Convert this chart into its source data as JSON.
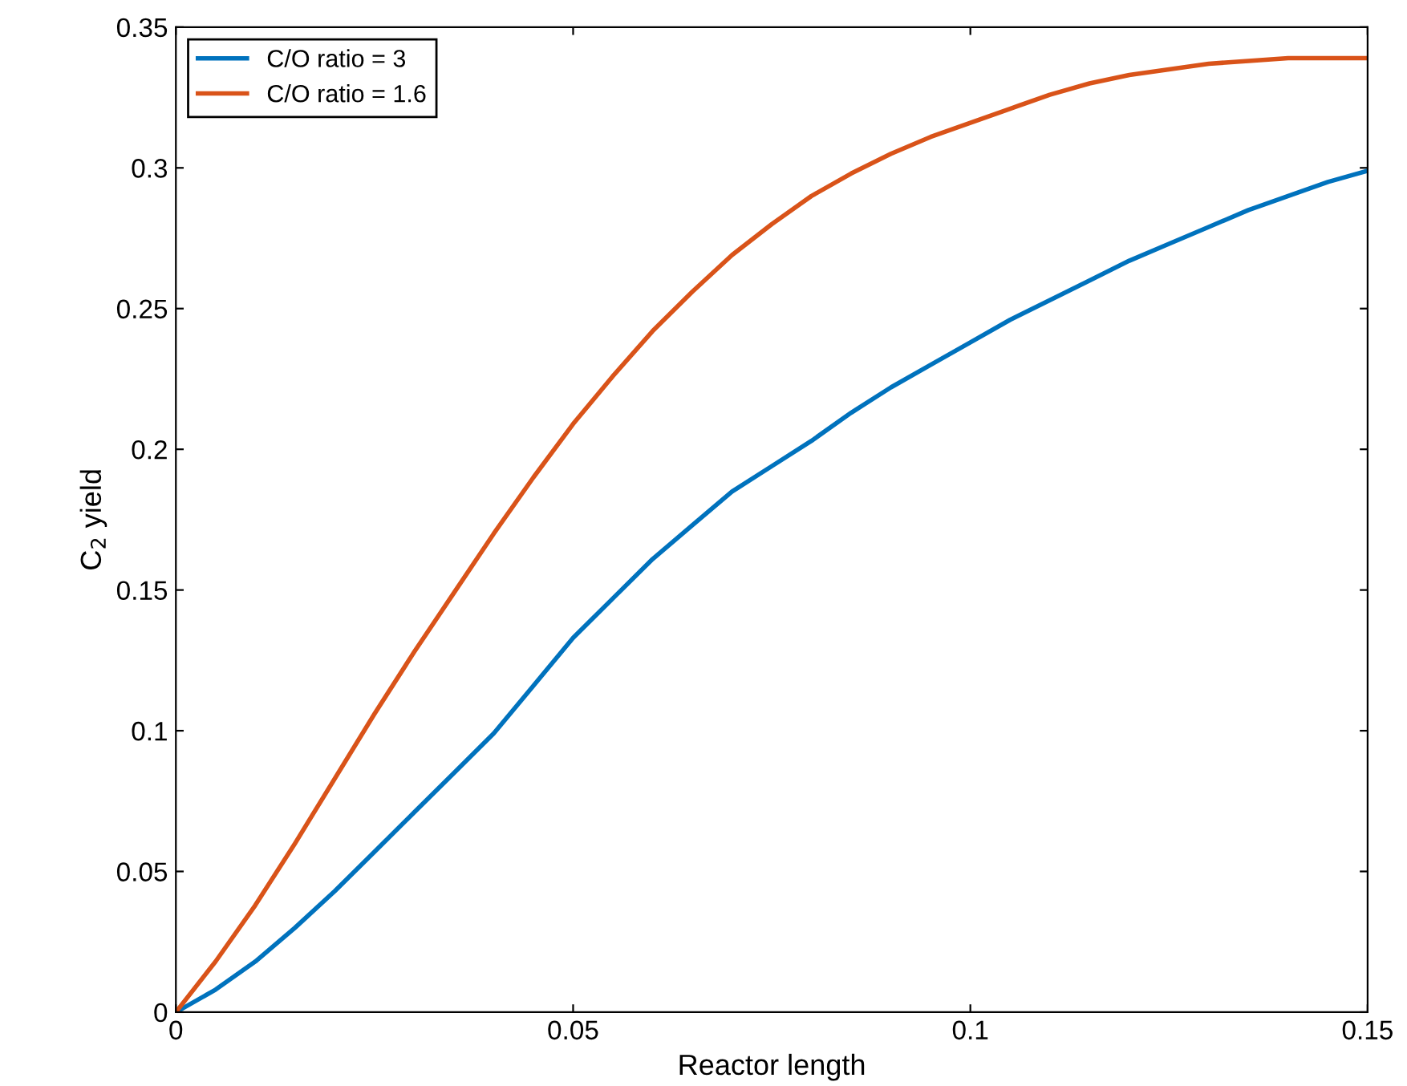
{
  "chart_data": {
    "type": "line",
    "xlabel": "Reactor length",
    "ylabel": "C$_{2}$ yield",
    "xlim": [
      0,
      0.15
    ],
    "xticks": [
      0,
      0.05,
      0.1,
      0.15
    ],
    "ylim": [
      0,
      0.35
    ],
    "yticks": [
      0,
      0.05,
      0.1,
      0.15,
      0.2,
      0.25,
      0.3,
      0.35
    ],
    "grid": false,
    "legend": "top left",
    "marker": "none",
    "line_style": "solid",
    "series": [
      {
        "name": "C/O ratio = 3",
        "color": "#0072bd",
        "x": [
          0,
          0.005,
          0.01,
          0.015,
          0.02,
          0.025,
          0.03,
          0.035,
          0.04,
          0.045,
          0.05,
          0.055,
          0.06,
          0.065,
          0.07,
          0.075,
          0.08,
          0.085,
          0.09,
          0.095,
          0.1,
          0.105,
          0.11,
          0.115,
          0.12,
          0.125,
          0.13,
          0.135,
          0.14,
          0.145,
          0.15
        ],
        "values": [
          0,
          0.008,
          0.018,
          0.03,
          0.043,
          0.057,
          0.071,
          0.085,
          0.099,
          0.116,
          0.133,
          0.147,
          0.161,
          0.173,
          0.185,
          0.194,
          0.203,
          0.213,
          0.222,
          0.23,
          0.238,
          0.246,
          0.253,
          0.26,
          0.267,
          0.273,
          0.279,
          0.285,
          0.29,
          0.295,
          0.299
        ]
      },
      {
        "name": "C/O ratio = 1.6",
        "color": "#d95319",
        "x": [
          0,
          0.005,
          0.01,
          0.015,
          0.02,
          0.025,
          0.03,
          0.035,
          0.04,
          0.045,
          0.05,
          0.055,
          0.06,
          0.065,
          0.07,
          0.075,
          0.08,
          0.085,
          0.09,
          0.095,
          0.1,
          0.105,
          0.11,
          0.115,
          0.12,
          0.125,
          0.13,
          0.135,
          0.14,
          0.145,
          0.15
        ],
        "values": [
          0,
          0.018,
          0.038,
          0.06,
          0.083,
          0.106,
          0.128,
          0.149,
          0.17,
          0.19,
          0.209,
          0.226,
          0.242,
          0.256,
          0.269,
          0.28,
          0.29,
          0.298,
          0.305,
          0.311,
          0.316,
          0.321,
          0.326,
          0.33,
          0.333,
          0.335,
          0.337,
          0.338,
          0.339,
          0.339,
          0.339
        ]
      }
    ]
  }
}
